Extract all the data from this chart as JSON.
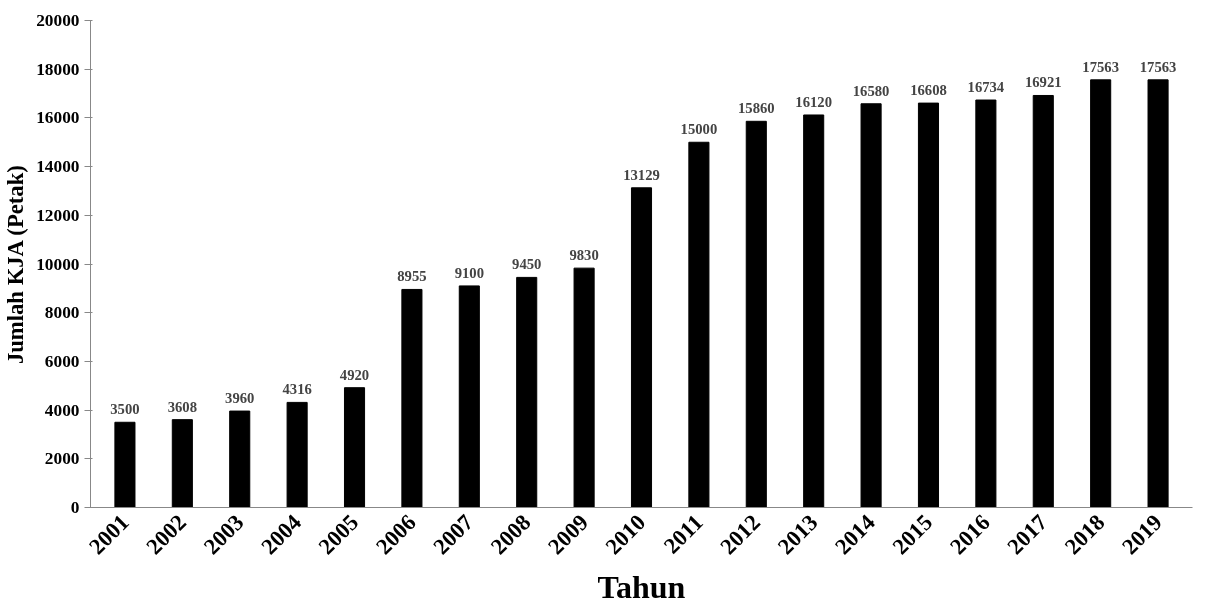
{
  "chart_data": {
    "type": "bar",
    "xlabel": "Tahun",
    "ylabel": "Jumlah KJA (Petak)",
    "categories": [
      "2001",
      "2002",
      "2003",
      "2004",
      "2005",
      "2006",
      "2007",
      "2008",
      "2009",
      "2010",
      "2011",
      "2012",
      "2013",
      "2014",
      "2015",
      "2016",
      "2017",
      "2018",
      "2019"
    ],
    "values": [
      3500,
      3608,
      3960,
      4316,
      4920,
      8955,
      9100,
      9450,
      9830,
      13129,
      15000,
      15860,
      16120,
      16580,
      16608,
      16734,
      16921,
      17563,
      17563
    ],
    "color": "#000000",
    "ylim": [
      0,
      20000
    ],
    "yticks": [
      0,
      2000,
      4000,
      6000,
      8000,
      10000,
      12000,
      14000,
      16000,
      18000,
      20000
    ],
    "data_labels": true,
    "grid": false
  }
}
